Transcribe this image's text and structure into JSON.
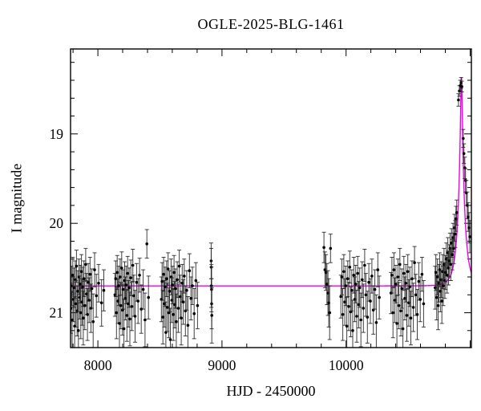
{
  "chart_data": {
    "type": "scatter",
    "title": "OGLE-2025-BLG-1461",
    "xlabel": "HJD - 2450000",
    "ylabel": "I magnitude",
    "x_range": [
      7780,
      11010
    ],
    "y_top_mag": 18.05,
    "y_bottom_mag": 21.39,
    "y_inverted": true,
    "grid": false,
    "legend": null,
    "x_major_ticks": [
      8000,
      9000,
      10000,
      11000
    ],
    "x_labeled_ticks": [
      8000,
      9000,
      10000
    ],
    "x_minor_step": 200,
    "y_major_ticks": [
      19,
      20,
      21
    ],
    "y_minor_step": 0.2,
    "colors": {
      "background": "#ffffff",
      "frame": "#000000",
      "points": "#000000",
      "error_bars": "#2b2b2b",
      "model_curve": "#ee00ee"
    },
    "model": {
      "kind": "point-lens-microlensing",
      "t0": 10930,
      "tE": 55,
      "u0": 0.117,
      "baseline_mag": 20.7,
      "peak_mag": 18.36
    },
    "points": [
      [
        7783,
        20.95,
        0.28
      ],
      [
        7788,
        20.7,
        0.22
      ],
      [
        7793,
        21.08,
        0.32
      ],
      [
        7798,
        20.58,
        0.2
      ],
      [
        7803,
        20.85,
        0.25
      ],
      [
        7808,
        20.72,
        0.22
      ],
      [
        7813,
        21.15,
        0.33
      ],
      [
        7818,
        20.63,
        0.21
      ],
      [
        7823,
        20.9,
        0.26
      ],
      [
        7828,
        20.48,
        0.18
      ],
      [
        7833,
        20.98,
        0.28
      ],
      [
        7838,
        20.76,
        0.23
      ],
      [
        7843,
        21.2,
        0.34
      ],
      [
        7848,
        20.6,
        0.2
      ],
      [
        7853,
        20.83,
        0.24
      ],
      [
        7858,
        20.68,
        0.21
      ],
      [
        7863,
        21.0,
        0.29
      ],
      [
        7868,
        20.54,
        0.19
      ],
      [
        7873,
        20.88,
        0.26
      ],
      [
        7878,
        20.71,
        0.22
      ],
      [
        7883,
        21.06,
        0.3
      ],
      [
        7888,
        20.62,
        0.2
      ],
      [
        7895,
        20.92,
        0.27
      ],
      [
        7902,
        20.46,
        0.18
      ],
      [
        7909,
        20.79,
        0.23
      ],
      [
        7916,
        21.02,
        0.29
      ],
      [
        7923,
        20.66,
        0.21
      ],
      [
        7930,
        20.86,
        0.25
      ],
      [
        7937,
        20.57,
        0.19
      ],
      [
        7944,
        20.95,
        0.27
      ],
      [
        7952,
        20.73,
        0.22
      ],
      [
        7962,
        21.1,
        0.31
      ],
      [
        7974,
        20.52,
        0.19
      ],
      [
        7988,
        20.81,
        0.24
      ],
      [
        8006,
        20.67,
        0.21
      ],
      [
        8030,
        20.89,
        0.26
      ],
      [
        8048,
        20.75,
        0.23
      ],
      [
        8138,
        20.8,
        0.24
      ],
      [
        8144,
        20.62,
        0.2
      ],
      [
        8150,
        21.0,
        0.29
      ],
      [
        8156,
        20.55,
        0.19
      ],
      [
        8162,
        20.87,
        0.25
      ],
      [
        8168,
        20.7,
        0.22
      ],
      [
        8174,
        21.12,
        0.31
      ],
      [
        8180,
        20.6,
        0.2
      ],
      [
        8186,
        20.92,
        0.26
      ],
      [
        8192,
        20.5,
        0.18
      ],
      [
        8198,
        20.97,
        0.28
      ],
      [
        8204,
        20.74,
        0.22
      ],
      [
        8210,
        21.18,
        0.33
      ],
      [
        8216,
        20.64,
        0.21
      ],
      [
        8222,
        20.84,
        0.24
      ],
      [
        8228,
        20.69,
        0.21
      ],
      [
        8234,
        21.03,
        0.29
      ],
      [
        8240,
        20.56,
        0.19
      ],
      [
        8246,
        20.9,
        0.26
      ],
      [
        8252,
        20.72,
        0.22
      ],
      [
        8258,
        21.07,
        0.3
      ],
      [
        8266,
        20.61,
        0.2
      ],
      [
        8274,
        20.93,
        0.27
      ],
      [
        8282,
        20.47,
        0.18
      ],
      [
        8290,
        20.81,
        0.23
      ],
      [
        8300,
        21.04,
        0.29
      ],
      [
        8312,
        20.66,
        0.21
      ],
      [
        8324,
        20.87,
        0.25
      ],
      [
        8336,
        20.58,
        0.19
      ],
      [
        8350,
        20.96,
        0.27
      ],
      [
        8365,
        20.74,
        0.22
      ],
      [
        8380,
        21.08,
        0.3
      ],
      [
        8395,
        20.23,
        0.16
      ],
      [
        8408,
        20.83,
        0.24
      ],
      [
        8512,
        20.85,
        0.25
      ],
      [
        8518,
        20.65,
        0.21
      ],
      [
        8524,
        21.05,
        0.3
      ],
      [
        8530,
        20.57,
        0.19
      ],
      [
        8536,
        20.9,
        0.26
      ],
      [
        8542,
        20.71,
        0.22
      ],
      [
        8548,
        21.22,
        0.34
      ],
      [
        8554,
        20.62,
        0.2
      ],
      [
        8560,
        20.94,
        0.27
      ],
      [
        8566,
        20.51,
        0.18
      ],
      [
        8572,
        21.0,
        0.28
      ],
      [
        8578,
        20.76,
        0.23
      ],
      [
        8584,
        21.3,
        0.35
      ],
      [
        8590,
        20.6,
        0.2
      ],
      [
        8596,
        20.86,
        0.25
      ],
      [
        8602,
        20.69,
        0.21
      ],
      [
        8608,
        21.02,
        0.29
      ],
      [
        8614,
        20.55,
        0.19
      ],
      [
        8620,
        20.91,
        0.26
      ],
      [
        8626,
        20.73,
        0.22
      ],
      [
        8632,
        21.1,
        0.31
      ],
      [
        8640,
        20.63,
        0.2
      ],
      [
        8648,
        20.95,
        0.27
      ],
      [
        8656,
        20.48,
        0.18
      ],
      [
        8664,
        20.82,
        0.24
      ],
      [
        8672,
        21.06,
        0.3
      ],
      [
        8680,
        20.67,
        0.21
      ],
      [
        8688,
        20.88,
        0.25
      ],
      [
        8696,
        20.59,
        0.19
      ],
      [
        8706,
        20.98,
        0.28
      ],
      [
        8716,
        20.75,
        0.22
      ],
      [
        8726,
        21.14,
        0.32
      ],
      [
        8738,
        20.53,
        0.19
      ],
      [
        8750,
        20.84,
        0.24
      ],
      [
        8762,
        20.7,
        0.21
      ],
      [
        8776,
        21.01,
        0.28
      ],
      [
        8790,
        20.64,
        0.2
      ],
      [
        8803,
        20.92,
        0.26
      ],
      [
        8913,
        20.42,
        0.2
      ],
      [
        8914,
        20.49,
        0.21
      ],
      [
        8915,
        20.7,
        0.24
      ],
      [
        8916,
        20.74,
        0.25
      ],
      [
        8917,
        20.9,
        0.28
      ],
      [
        8918,
        21.03,
        0.31
      ],
      [
        9822,
        20.27,
        0.17
      ],
      [
        9830,
        20.52,
        0.2
      ],
      [
        9838,
        20.55,
        0.2
      ],
      [
        9846,
        20.68,
        0.23
      ],
      [
        9854,
        20.78,
        0.25
      ],
      [
        9861,
        20.89,
        0.27
      ],
      [
        9868,
        21.0,
        0.3
      ],
      [
        9875,
        20.28,
        0.16
      ],
      [
        9958,
        20.82,
        0.24
      ],
      [
        9966,
        20.6,
        0.2
      ],
      [
        9974,
        21.02,
        0.29
      ],
      [
        9982,
        20.54,
        0.19
      ],
      [
        9990,
        20.88,
        0.26
      ],
      [
        9998,
        20.7,
        0.22
      ],
      [
        10006,
        21.15,
        0.32
      ],
      [
        10014,
        20.62,
        0.2
      ],
      [
        10022,
        20.93,
        0.27
      ],
      [
        10030,
        20.49,
        0.18
      ],
      [
        10038,
        20.99,
        0.28
      ],
      [
        10046,
        20.75,
        0.23
      ],
      [
        10054,
        21.2,
        0.34
      ],
      [
        10062,
        20.58,
        0.2
      ],
      [
        10070,
        20.85,
        0.25
      ],
      [
        10078,
        20.68,
        0.21
      ],
      [
        10086,
        21.04,
        0.29
      ],
      [
        10094,
        20.56,
        0.19
      ],
      [
        10102,
        20.91,
        0.26
      ],
      [
        10110,
        20.72,
        0.22
      ],
      [
        10120,
        21.08,
        0.3
      ],
      [
        10130,
        20.63,
        0.2
      ],
      [
        10140,
        20.95,
        0.27
      ],
      [
        10150,
        20.47,
        0.18
      ],
      [
        10160,
        20.8,
        0.24
      ],
      [
        10172,
        21.05,
        0.29
      ],
      [
        10184,
        20.66,
        0.21
      ],
      [
        10196,
        20.87,
        0.25
      ],
      [
        10208,
        20.59,
        0.19
      ],
      [
        10220,
        20.97,
        0.27
      ],
      [
        10232,
        20.74,
        0.22
      ],
      [
        10244,
        21.11,
        0.31
      ],
      [
        10256,
        20.52,
        0.19
      ],
      [
        10268,
        20.83,
        0.24
      ],
      [
        10362,
        20.78,
        0.23
      ],
      [
        10370,
        20.58,
        0.2
      ],
      [
        10378,
        21.0,
        0.28
      ],
      [
        10386,
        20.52,
        0.19
      ],
      [
        10394,
        20.86,
        0.25
      ],
      [
        10402,
        20.68,
        0.21
      ],
      [
        10410,
        21.12,
        0.31
      ],
      [
        10418,
        20.6,
        0.2
      ],
      [
        10426,
        20.92,
        0.26
      ],
      [
        10434,
        20.46,
        0.18
      ],
      [
        10442,
        20.98,
        0.28
      ],
      [
        10450,
        20.73,
        0.22
      ],
      [
        10458,
        21.18,
        0.33
      ],
      [
        10466,
        20.56,
        0.19
      ],
      [
        10474,
        20.84,
        0.24
      ],
      [
        10482,
        20.67,
        0.21
      ],
      [
        10490,
        21.03,
        0.29
      ],
      [
        10498,
        20.54,
        0.19
      ],
      [
        10506,
        20.89,
        0.26
      ],
      [
        10514,
        20.71,
        0.22
      ],
      [
        10522,
        21.06,
        0.3
      ],
      [
        10532,
        20.62,
        0.2
      ],
      [
        10542,
        20.94,
        0.27
      ],
      [
        10552,
        20.44,
        0.18
      ],
      [
        10562,
        20.8,
        0.23
      ],
      [
        10574,
        21.02,
        0.28
      ],
      [
        10586,
        20.65,
        0.21
      ],
      [
        10598,
        20.85,
        0.25
      ],
      [
        10612,
        20.57,
        0.19
      ],
      [
        10625,
        20.9,
        0.26
      ],
      [
        10718,
        20.72,
        0.24
      ],
      [
        10724,
        20.55,
        0.2
      ],
      [
        10730,
        20.83,
        0.25
      ],
      [
        10736,
        20.6,
        0.2
      ],
      [
        10742,
        20.92,
        0.27
      ],
      [
        10748,
        20.67,
        0.21
      ],
      [
        10754,
        20.52,
        0.19
      ],
      [
        10760,
        20.76,
        0.23
      ],
      [
        10766,
        20.63,
        0.2
      ],
      [
        10772,
        20.87,
        0.25
      ],
      [
        10778,
        20.54,
        0.19
      ],
      [
        10784,
        20.7,
        0.22
      ],
      [
        10790,
        20.46,
        0.18
      ],
      [
        10796,
        20.64,
        0.2
      ],
      [
        10802,
        20.55,
        0.19
      ],
      [
        10808,
        20.4,
        0.18
      ],
      [
        10814,
        20.58,
        0.2
      ],
      [
        10820,
        20.33,
        0.17
      ],
      [
        10826,
        20.5,
        0.19
      ],
      [
        10832,
        20.42,
        0.18
      ],
      [
        10838,
        20.28,
        0.17
      ],
      [
        10844,
        20.46,
        0.18
      ],
      [
        10850,
        20.22,
        0.16
      ],
      [
        10856,
        20.35,
        0.17
      ],
      [
        10862,
        20.16,
        0.16
      ],
      [
        10868,
        20.28,
        0.17
      ],
      [
        10874,
        20.05,
        0.15
      ],
      [
        10880,
        20.12,
        0.15
      ],
      [
        10886,
        19.95,
        0.14
      ],
      [
        10892,
        19.88,
        0.14
      ],
      [
        10906,
        18.62,
        0.07
      ],
      [
        10913,
        18.52,
        0.06
      ],
      [
        10920,
        18.46,
        0.06
      ],
      [
        10927,
        18.43,
        0.06
      ],
      [
        10933,
        18.47,
        0.06
      ],
      [
        10944,
        19.05,
        0.1
      ],
      [
        10950,
        19.22,
        0.11
      ],
      [
        10957,
        19.38,
        0.12
      ],
      [
        10963,
        19.52,
        0.13
      ],
      [
        10970,
        19.66,
        0.14
      ],
      [
        10977,
        19.8,
        0.15
      ],
      [
        10984,
        19.93,
        0.16
      ],
      [
        10991,
        20.05,
        0.17
      ],
      [
        10998,
        20.15,
        0.18
      ]
    ]
  }
}
